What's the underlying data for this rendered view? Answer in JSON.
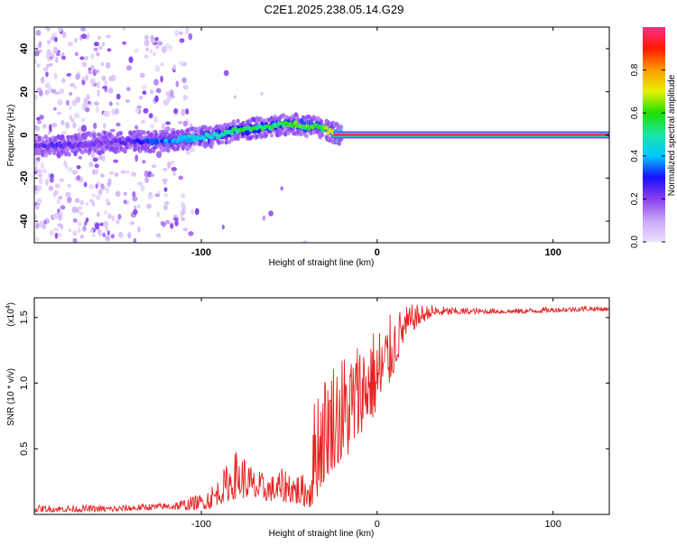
{
  "title": "C2E1.2025.238.05.14.G29",
  "chart_data": [
    {
      "type": "heatmap",
      "title": "C2E1.2025.238.05.14.G29",
      "xlabel": "Height of straight line (km)",
      "ylabel": "Frequency (Hz)",
      "xlim": [
        -195,
        132
      ],
      "ylim": [
        -50,
        50
      ],
      "x_ticks": [
        -100,
        0,
        100
      ],
      "x_tick_labels": [
        "-100",
        "0",
        "100"
      ],
      "y_ticks": [
        -40,
        -20,
        0,
        20,
        40
      ],
      "y_tick_labels": [
        "-40",
        "-20",
        "0",
        "20",
        "40"
      ],
      "colorbar": {
        "label": "Normalized spectral amplitude",
        "range": [
          0,
          1
        ],
        "ticks": [
          0.0,
          0.2,
          0.4,
          0.6,
          0.8
        ],
        "tick_labels": [
          "0.0",
          "0.2",
          "0.4",
          "0.6",
          "0.8"
        ],
        "colors": [
          "#ece0ff",
          "#c9a6f5",
          "#8a3ff0",
          "#1a10ff",
          "#00c8ff",
          "#19e6a6",
          "#1fe000",
          "#e6f000",
          "#ff9c00",
          "#ff1a00",
          "#ff2a8c"
        ]
      },
      "ridge": {
        "x": [
          -195,
          -180,
          -160,
          -140,
          -120,
          -110,
          -100,
          -90,
          -80,
          -70,
          -60,
          -50,
          -45,
          -40,
          -35,
          -30,
          -25,
          -20,
          -15,
          -10,
          0,
          20,
          60,
          100,
          132
        ],
        "y": [
          -5,
          -5,
          -4,
          -3,
          -3,
          -2,
          -1,
          0,
          2,
          3,
          4,
          5,
          5,
          4,
          4,
          3,
          1,
          0,
          0,
          0,
          0,
          0,
          0,
          0,
          0
        ],
        "amplitude": [
          0.22,
          0.25,
          0.2,
          0.25,
          0.38,
          0.4,
          0.45,
          0.5,
          0.55,
          0.55,
          0.55,
          0.58,
          0.6,
          0.6,
          0.6,
          0.62,
          0.7,
          0.85,
          0.9,
          0.95,
          0.97,
          0.98,
          0.98,
          0.98,
          0.98
        ]
      }
    },
    {
      "type": "line",
      "xlabel": "Height of straight line (km)",
      "ylabel": "SNR (10 * v/v)",
      "multiplier_label": "(x10",
      "multiplier_exp": "4",
      "multiplier_close": ")",
      "xlim": [
        -195,
        132
      ],
      "ylim": [
        0,
        16500
      ],
      "x_ticks": [
        -100,
        0,
        100
      ],
      "x_tick_labels": [
        "-100",
        "0",
        "100"
      ],
      "y_ticks": [
        5000,
        10000,
        15000
      ],
      "y_tick_labels": [
        "0.5",
        "1.0",
        "1.5"
      ],
      "series": [
        {
          "name": "SNR",
          "color": "#e82020",
          "envelope_x": [
            -195,
            -150,
            -120,
            -110,
            -100,
            -95,
            -90,
            -85,
            -80,
            -75,
            -70,
            -65,
            -60,
            -55,
            -50,
            -45,
            -40,
            -38,
            -35,
            -30,
            -25,
            -20,
            -15,
            -10,
            -5,
            0,
            5,
            10,
            15,
            20,
            25,
            30,
            40,
            60,
            80,
            100,
            120,
            132
          ],
          "envelope_lo": [
            200,
            200,
            400,
            300,
            400,
            400,
            800,
            1000,
            1200,
            1200,
            1000,
            1000,
            1000,
            900,
            900,
            700,
            600,
            400,
            1000,
            2500,
            3500,
            3800,
            4500,
            6000,
            7000,
            7500,
            9000,
            11000,
            13000,
            14000,
            14500,
            15000,
            15200,
            15300,
            15300,
            15400,
            15500,
            15500
          ],
          "envelope_hi": [
            700,
            700,
            900,
            1200,
            1600,
            2200,
            2800,
            4000,
            5000,
            4500,
            3500,
            3200,
            3000,
            3500,
            3600,
            3200,
            3000,
            4000,
            10500,
            11000,
            12000,
            12500,
            13000,
            13500,
            14000,
            14500,
            15000,
            15500,
            15800,
            16000,
            16000,
            16000,
            15800,
            15700,
            15700,
            15800,
            15900,
            15800
          ]
        }
      ]
    }
  ]
}
